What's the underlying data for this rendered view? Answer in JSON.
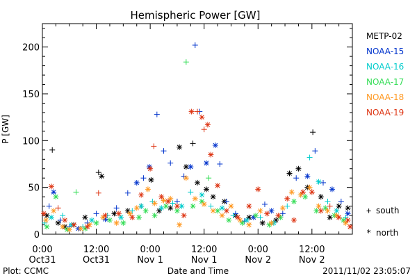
{
  "chart_data": {
    "type": "scatter",
    "title": "Hemispheric Power [GW]",
    "xlabel": "Date and Time",
    "ylabel": "P [GW]",
    "x_unit": "hours after 2011-10-31 00:00 UT",
    "xlim": [
      0,
      69
    ],
    "ylim": [
      0,
      225
    ],
    "yticks": [
      0,
      50,
      100,
      150,
      200
    ],
    "xticks": [
      {
        "hour": 0,
        "line1": "0:00",
        "line2": "Oct31"
      },
      {
        "hour": 12,
        "line1": "12:00",
        "line2": "Oct31"
      },
      {
        "hour": 24,
        "line1": "0:00",
        "line2": "Nov 1"
      },
      {
        "hour": 36,
        "line1": "12:00",
        "line2": "Nov 1"
      },
      {
        "hour": 48,
        "line1": "0:00",
        "line2": "Nov 2"
      },
      {
        "hour": 60,
        "line1": "12:00",
        "line2": "Nov 2"
      }
    ],
    "legend_position": "right",
    "symbol_legend": [
      {
        "symbol": "+",
        "label": "south"
      },
      {
        "symbol": "*",
        "label": "north"
      }
    ],
    "series": [
      {
        "name": "METP-02",
        "color": "#000000",
        "points": [
          {
            "x": 1.0,
            "y": 20,
            "m": "*"
          },
          {
            "x": 2.2,
            "y": 90,
            "m": "+"
          },
          {
            "x": 3.5,
            "y": 12,
            "m": "*"
          },
          {
            "x": 5.0,
            "y": 8,
            "m": "*"
          },
          {
            "x": 7.0,
            "y": 10,
            "m": "*"
          },
          {
            "x": 9.5,
            "y": 18,
            "m": "*"
          },
          {
            "x": 12.5,
            "y": 66,
            "m": "+"
          },
          {
            "x": 13.2,
            "y": 62,
            "m": "*"
          },
          {
            "x": 16.0,
            "y": 22,
            "m": "*"
          },
          {
            "x": 19.0,
            "y": 25,
            "m": "*"
          },
          {
            "x": 22.0,
            "y": 30,
            "m": "+"
          },
          {
            "x": 24.2,
            "y": 58,
            "m": "*"
          },
          {
            "x": 26.0,
            "y": 25,
            "m": "*"
          },
          {
            "x": 28.5,
            "y": 28,
            "m": "*"
          },
          {
            "x": 30.5,
            "y": 93,
            "m": "*"
          },
          {
            "x": 32.0,
            "y": 72,
            "m": "*"
          },
          {
            "x": 33.5,
            "y": 97,
            "m": "+"
          },
          {
            "x": 34.5,
            "y": 55,
            "m": "*"
          },
          {
            "x": 36.5,
            "y": 48,
            "m": "*"
          },
          {
            "x": 38.0,
            "y": 40,
            "m": "*"
          },
          {
            "x": 40.5,
            "y": 35,
            "m": "*"
          },
          {
            "x": 43.0,
            "y": 20,
            "m": "*"
          },
          {
            "x": 46.0,
            "y": 18,
            "m": "*"
          },
          {
            "x": 49.0,
            "y": 12,
            "m": "*"
          },
          {
            "x": 52.0,
            "y": 15,
            "m": "*"
          },
          {
            "x": 55.0,
            "y": 65,
            "m": "*"
          },
          {
            "x": 57.0,
            "y": 70,
            "m": "*"
          },
          {
            "x": 59.0,
            "y": 50,
            "m": "*"
          },
          {
            "x": 60.2,
            "y": 109,
            "m": "+"
          },
          {
            "x": 62.0,
            "y": 40,
            "m": "*"
          },
          {
            "x": 64.0,
            "y": 18,
            "m": "*"
          },
          {
            "x": 66.0,
            "y": 30,
            "m": "*"
          },
          {
            "x": 68.0,
            "y": 28,
            "m": "*"
          }
        ]
      },
      {
        "name": "NOAA-15",
        "color": "#0033cc",
        "points": [
          {
            "x": 1.5,
            "y": 30,
            "m": "+"
          },
          {
            "x": 2.5,
            "y": 45,
            "m": "*"
          },
          {
            "x": 4.0,
            "y": 15,
            "m": "+"
          },
          {
            "x": 6.0,
            "y": 8,
            "m": "+"
          },
          {
            "x": 8.0,
            "y": 6,
            "m": "*"
          },
          {
            "x": 10.0,
            "y": 12,
            "m": "+"
          },
          {
            "x": 12.0,
            "y": 22,
            "m": "+"
          },
          {
            "x": 14.0,
            "y": 16,
            "m": "*"
          },
          {
            "x": 16.5,
            "y": 28,
            "m": "+"
          },
          {
            "x": 19.0,
            "y": 44,
            "m": "+"
          },
          {
            "x": 21.0,
            "y": 55,
            "m": "*"
          },
          {
            "x": 22.5,
            "y": 60,
            "m": "+"
          },
          {
            "x": 23.8,
            "y": 72,
            "m": "*"
          },
          {
            "x": 25.5,
            "y": 128,
            "m": "+"
          },
          {
            "x": 27.0,
            "y": 89,
            "m": "+"
          },
          {
            "x": 28.5,
            "y": 76,
            "m": "+"
          },
          {
            "x": 30.0,
            "y": 35,
            "m": "+"
          },
          {
            "x": 31.5,
            "y": 62,
            "m": "+"
          },
          {
            "x": 33.0,
            "y": 72,
            "m": "*"
          },
          {
            "x": 34.0,
            "y": 202,
            "m": "+"
          },
          {
            "x": 35.0,
            "y": 131,
            "m": "+"
          },
          {
            "x": 36.5,
            "y": 76,
            "m": "*"
          },
          {
            "x": 38.5,
            "y": 95,
            "m": "*"
          },
          {
            "x": 39.5,
            "y": 75,
            "m": "+"
          },
          {
            "x": 41.0,
            "y": 35,
            "m": "+"
          },
          {
            "x": 43.0,
            "y": 22,
            "m": "+"
          },
          {
            "x": 45.0,
            "y": 14,
            "m": "+"
          },
          {
            "x": 47.0,
            "y": 18,
            "m": "*"
          },
          {
            "x": 49.5,
            "y": 32,
            "m": "+"
          },
          {
            "x": 51.0,
            "y": 25,
            "m": "*"
          },
          {
            "x": 53.5,
            "y": 22,
            "m": "+"
          },
          {
            "x": 56.5,
            "y": 60,
            "m": "+"
          },
          {
            "x": 59.0,
            "y": 62,
            "m": "*"
          },
          {
            "x": 60.7,
            "y": 89,
            "m": "+"
          },
          {
            "x": 62.5,
            "y": 55,
            "m": "+"
          },
          {
            "x": 64.5,
            "y": 48,
            "m": "*"
          },
          {
            "x": 66.5,
            "y": 35,
            "m": "+"
          },
          {
            "x": 68.0,
            "y": 22,
            "m": "*"
          }
        ]
      },
      {
        "name": "NOAA-16",
        "color": "#00cccc",
        "points": [
          {
            "x": 0.5,
            "y": 12,
            "m": "+"
          },
          {
            "x": 2.0,
            "y": 18,
            "m": "*"
          },
          {
            "x": 4.5,
            "y": 20,
            "m": "+"
          },
          {
            "x": 6.5,
            "y": 10,
            "m": "*"
          },
          {
            "x": 9.0,
            "y": 8,
            "m": "+"
          },
          {
            "x": 11.0,
            "y": 15,
            "m": "*"
          },
          {
            "x": 14.5,
            "y": 20,
            "m": "+"
          },
          {
            "x": 17.5,
            "y": 18,
            "m": "*"
          },
          {
            "x": 20.0,
            "y": 25,
            "m": "+"
          },
          {
            "x": 22.0,
            "y": 30,
            "m": "*"
          },
          {
            "x": 24.5,
            "y": 35,
            "m": "+"
          },
          {
            "x": 26.5,
            "y": 28,
            "m": "*"
          },
          {
            "x": 29.0,
            "y": 33,
            "m": "+"
          },
          {
            "x": 31.0,
            "y": 30,
            "m": "*"
          },
          {
            "x": 33.0,
            "y": 45,
            "m": "+"
          },
          {
            "x": 35.5,
            "y": 42,
            "m": "*"
          },
          {
            "x": 37.5,
            "y": 30,
            "m": "+"
          },
          {
            "x": 40.0,
            "y": 28,
            "m": "*"
          },
          {
            "x": 42.5,
            "y": 20,
            "m": "+"
          },
          {
            "x": 45.5,
            "y": 15,
            "m": "*"
          },
          {
            "x": 48.5,
            "y": 18,
            "m": "+"
          },
          {
            "x": 51.5,
            "y": 12,
            "m": "*"
          },
          {
            "x": 54.5,
            "y": 30,
            "m": "+"
          },
          {
            "x": 57.5,
            "y": 42,
            "m": "+"
          },
          {
            "x": 59.5,
            "y": 82,
            "m": "+"
          },
          {
            "x": 61.5,
            "y": 56,
            "m": "*"
          },
          {
            "x": 63.5,
            "y": 35,
            "m": "+"
          },
          {
            "x": 65.5,
            "y": 25,
            "m": "*"
          },
          {
            "x": 67.5,
            "y": 18,
            "m": "+"
          }
        ]
      },
      {
        "name": "NOAA-17",
        "color": "#33dd55",
        "points": [
          {
            "x": 1.0,
            "y": 8,
            "m": "*"
          },
          {
            "x": 3.0,
            "y": 40,
            "m": "*"
          },
          {
            "x": 5.5,
            "y": 5,
            "m": "*"
          },
          {
            "x": 7.5,
            "y": 45,
            "m": "+"
          },
          {
            "x": 9.5,
            "y": 6,
            "m": "*"
          },
          {
            "x": 12.0,
            "y": 12,
            "m": "*"
          },
          {
            "x": 15.0,
            "y": 15,
            "m": "*"
          },
          {
            "x": 18.0,
            "y": 12,
            "m": "*"
          },
          {
            "x": 21.5,
            "y": 18,
            "m": "*"
          },
          {
            "x": 23.0,
            "y": 25,
            "m": "*"
          },
          {
            "x": 25.0,
            "y": 20,
            "m": "*"
          },
          {
            "x": 27.5,
            "y": 30,
            "m": "*"
          },
          {
            "x": 30.0,
            "y": 25,
            "m": "*"
          },
          {
            "x": 32.0,
            "y": 184,
            "m": "+"
          },
          {
            "x": 33.5,
            "y": 30,
            "m": "*"
          },
          {
            "x": 35.5,
            "y": 35,
            "m": "*"
          },
          {
            "x": 37.0,
            "y": 60,
            "m": "+"
          },
          {
            "x": 39.0,
            "y": 25,
            "m": "*"
          },
          {
            "x": 41.5,
            "y": 15,
            "m": "*"
          },
          {
            "x": 44.5,
            "y": 12,
            "m": "*"
          },
          {
            "x": 47.5,
            "y": 20,
            "m": "*"
          },
          {
            "x": 50.5,
            "y": 10,
            "m": "*"
          },
          {
            "x": 53.0,
            "y": 18,
            "m": "*"
          },
          {
            "x": 56.0,
            "y": 35,
            "m": "*"
          },
          {
            "x": 58.5,
            "y": 40,
            "m": "*"
          },
          {
            "x": 61.0,
            "y": 25,
            "m": "*"
          },
          {
            "x": 63.0,
            "y": 28,
            "m": "*"
          },
          {
            "x": 65.0,
            "y": 20,
            "m": "*"
          },
          {
            "x": 67.0,
            "y": 15,
            "m": "*"
          }
        ]
      },
      {
        "name": "NOAA-18",
        "color": "#ff9922",
        "points": [
          {
            "x": 0.8,
            "y": 15,
            "m": "*"
          },
          {
            "x": 2.5,
            "y": 25,
            "m": "*"
          },
          {
            "x": 4.5,
            "y": 8,
            "m": "*"
          },
          {
            "x": 6.0,
            "y": 5,
            "m": "*"
          },
          {
            "x": 8.5,
            "y": 6,
            "m": "*"
          },
          {
            "x": 10.5,
            "y": 10,
            "m": "*"
          },
          {
            "x": 13.5,
            "y": 18,
            "m": "*"
          },
          {
            "x": 16.5,
            "y": 12,
            "m": "*"
          },
          {
            "x": 19.5,
            "y": 22,
            "m": "*"
          },
          {
            "x": 21.0,
            "y": 28,
            "m": "*"
          },
          {
            "x": 23.5,
            "y": 48,
            "m": "*"
          },
          {
            "x": 25.0,
            "y": 33,
            "m": "*"
          },
          {
            "x": 27.0,
            "y": 36,
            "m": "*"
          },
          {
            "x": 28.5,
            "y": 38,
            "m": "*"
          },
          {
            "x": 30.5,
            "y": 10,
            "m": "*"
          },
          {
            "x": 32.0,
            "y": 60,
            "m": "*"
          },
          {
            "x": 34.0,
            "y": 38,
            "m": "*"
          },
          {
            "x": 36.0,
            "y": 32,
            "m": "*"
          },
          {
            "x": 38.0,
            "y": 25,
            "m": "*"
          },
          {
            "x": 40.0,
            "y": 20,
            "m": "*"
          },
          {
            "x": 42.0,
            "y": 30,
            "m": "*"
          },
          {
            "x": 44.0,
            "y": 15,
            "m": "*"
          },
          {
            "x": 46.0,
            "y": 10,
            "m": "*"
          },
          {
            "x": 48.5,
            "y": 25,
            "m": "*"
          },
          {
            "x": 51.0,
            "y": 12,
            "m": "*"
          },
          {
            "x": 53.5,
            "y": 28,
            "m": "*"
          },
          {
            "x": 55.5,
            "y": 45,
            "m": "*"
          },
          {
            "x": 57.5,
            "y": 42,
            "m": "*"
          },
          {
            "x": 59.5,
            "y": 50,
            "m": "*"
          },
          {
            "x": 61.5,
            "y": 30,
            "m": "*"
          },
          {
            "x": 63.5,
            "y": 25,
            "m": "*"
          },
          {
            "x": 65.5,
            "y": 20,
            "m": "*"
          },
          {
            "x": 67.5,
            "y": 12,
            "m": "*"
          }
        ]
      },
      {
        "name": "NOAA-19",
        "color": "#dd3311",
        "points": [
          {
            "x": 0.3,
            "y": 22,
            "m": "*"
          },
          {
            "x": 2.0,
            "y": 51,
            "m": "*"
          },
          {
            "x": 3.5,
            "y": 28,
            "m": "+"
          },
          {
            "x": 5.0,
            "y": 15,
            "m": "*"
          },
          {
            "x": 7.0,
            "y": 10,
            "m": "*"
          },
          {
            "x": 10.0,
            "y": 8,
            "m": "*"
          },
          {
            "x": 12.5,
            "y": 44,
            "m": "+"
          },
          {
            "x": 14.0,
            "y": 20,
            "m": "*"
          },
          {
            "x": 17.0,
            "y": 22,
            "m": "*"
          },
          {
            "x": 20.0,
            "y": 18,
            "m": "*"
          },
          {
            "x": 22.0,
            "y": 42,
            "m": "*"
          },
          {
            "x": 24.0,
            "y": 70,
            "m": "*"
          },
          {
            "x": 24.8,
            "y": 94,
            "m": "+"
          },
          {
            "x": 26.5,
            "y": 40,
            "m": "*"
          },
          {
            "x": 28.0,
            "y": 35,
            "m": "*"
          },
          {
            "x": 30.0,
            "y": 30,
            "m": "*"
          },
          {
            "x": 31.5,
            "y": 20,
            "m": "*"
          },
          {
            "x": 33.2,
            "y": 131,
            "m": "*"
          },
          {
            "x": 34.5,
            "y": 131,
            "m": "+"
          },
          {
            "x": 35.5,
            "y": 125,
            "m": "*"
          },
          {
            "x": 36.0,
            "y": 112,
            "m": "+"
          },
          {
            "x": 36.8,
            "y": 117,
            "m": "*"
          },
          {
            "x": 37.5,
            "y": 85,
            "m": "*"
          },
          {
            "x": 39.0,
            "y": 52,
            "m": "*"
          },
          {
            "x": 41.0,
            "y": 25,
            "m": "*"
          },
          {
            "x": 43.5,
            "y": 18,
            "m": "*"
          },
          {
            "x": 46.0,
            "y": 30,
            "m": "*"
          },
          {
            "x": 48.0,
            "y": 48,
            "m": "*"
          },
          {
            "x": 50.0,
            "y": 22,
            "m": "*"
          },
          {
            "x": 52.5,
            "y": 20,
            "m": "*"
          },
          {
            "x": 54.5,
            "y": 38,
            "m": "*"
          },
          {
            "x": 56.0,
            "y": 15,
            "m": "*"
          },
          {
            "x": 58.0,
            "y": 45,
            "m": "*"
          },
          {
            "x": 60.0,
            "y": 45,
            "m": "*"
          },
          {
            "x": 62.0,
            "y": 25,
            "m": "*"
          },
          {
            "x": 64.0,
            "y": 30,
            "m": "+"
          },
          {
            "x": 66.0,
            "y": 18,
            "m": "*"
          },
          {
            "x": 68.0,
            "y": 15,
            "m": "*"
          },
          {
            "x": 68.5,
            "y": 8,
            "m": "*"
          }
        ]
      }
    ]
  },
  "footer": {
    "left": "Plot: CCMC",
    "right": "2011/11/02 23:05:07"
  }
}
